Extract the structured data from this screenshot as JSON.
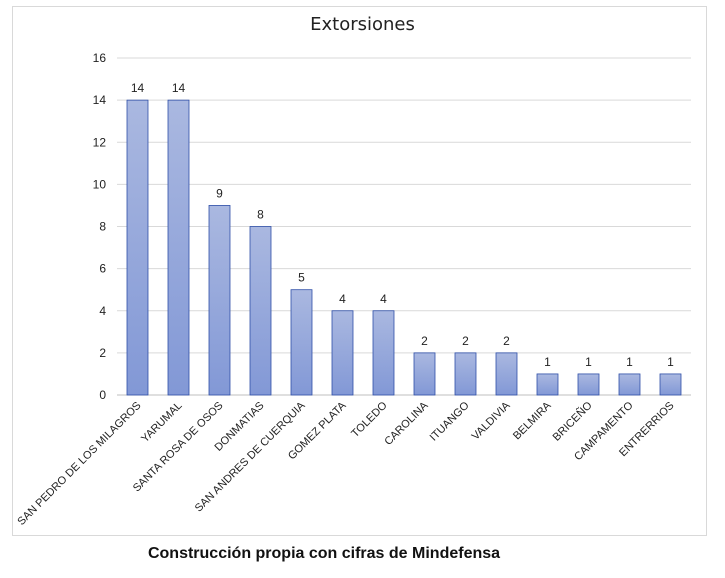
{
  "chart_data": {
    "type": "bar",
    "title": "Extorsiones",
    "categories": [
      "SAN PEDRO DE LOS MILAGROS",
      "YARUMAL",
      "SANTA ROSA DE OSOS",
      "DONMATIAS",
      "SAN ANDRES DE CUERQUIA",
      "GOMEZ PLATA",
      "TOLEDO",
      "CAROLINA",
      "ITUANGO",
      "VALDIVIA",
      "BELMIRA",
      "BRICEÑO",
      "CAMPAMENTO",
      "ENTRERRIOS"
    ],
    "values": [
      14,
      14,
      9,
      8,
      5,
      4,
      4,
      2,
      2,
      2,
      1,
      1,
      1,
      1
    ],
    "xlabel": "",
    "ylabel": "",
    "ylim": [
      0,
      16
    ],
    "yticks": [
      0,
      2,
      4,
      6,
      8,
      10,
      12,
      14,
      16
    ],
    "grid": true,
    "data_labels": true,
    "colors": {
      "bar_top": "#aab8e0",
      "bar_bottom": "#8298d6",
      "bar_border": "#2f4fa8",
      "grid": "#d9d9d9"
    }
  },
  "source_note": "Construcción propia con cifras de Mindefensa"
}
